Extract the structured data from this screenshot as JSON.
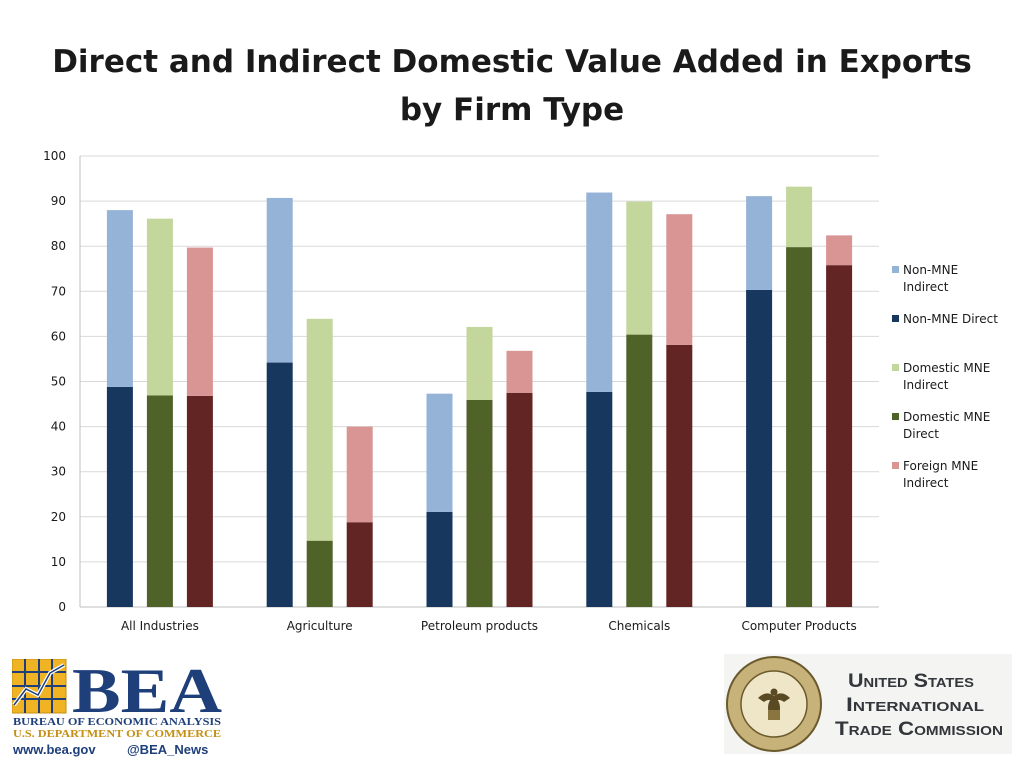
{
  "title_line1": "Direct and Indirect Domestic Value Added in Exports",
  "title_line2": "by Firm Type",
  "colors": {
    "non_mne_indirect": "#95b3d7",
    "non_mne_direct": "#17375e",
    "domestic_mne_indirect": "#c3d69b",
    "domestic_mne_direct": "#4f6228",
    "foreign_mne_indirect": "#d99594",
    "foreign_mne_direct": "#632523"
  },
  "legend": [
    {
      "key": "non_mne_indirect",
      "label": "Non-MNE Indirect"
    },
    {
      "key": "non_mne_direct",
      "label": "Non-MNE Direct"
    },
    {
      "key": "domestic_mne_indirect",
      "label": "Domestic MNE Indirect"
    },
    {
      "key": "domestic_mne_direct",
      "label": "Domestic MNE Direct"
    },
    {
      "key": "foreign_mne_indirect",
      "label": "Foreign MNE Indirect"
    }
  ],
  "chart_data": {
    "type": "bar",
    "stacked": true,
    "grouped": true,
    "title": "Direct and Indirect Domestic Value Added in Exports by Firm Type",
    "xlabel": "",
    "ylabel": "",
    "ylim": [
      0,
      100
    ],
    "yticks": [
      0,
      10,
      20,
      30,
      40,
      50,
      60,
      70,
      80,
      90,
      100
    ],
    "grid": true,
    "legend_position": "right",
    "categories": [
      "All Industries",
      "Agriculture",
      "Petroleum products",
      "Chemicals",
      "Computer Products"
    ],
    "groups": [
      {
        "name": "Non-MNE",
        "series": [
          {
            "name": "Non-MNE Direct",
            "color_key": "non_mne_direct",
            "values": [
              48.8,
              54.2,
              21.1,
              47.7,
              70.3
            ]
          },
          {
            "name": "Non-MNE Indirect",
            "color_key": "non_mne_indirect",
            "values": [
              39.2,
              36.5,
              26.2,
              44.2,
              20.8
            ]
          }
        ]
      },
      {
        "name": "Domestic MNE",
        "series": [
          {
            "name": "Domestic MNE Direct",
            "color_key": "domestic_mne_direct",
            "values": [
              46.9,
              14.7,
              45.9,
              60.4,
              79.8
            ]
          },
          {
            "name": "Domestic MNE Indirect",
            "color_key": "domestic_mne_indirect",
            "values": [
              39.2,
              49.2,
              16.2,
              29.5,
              13.4
            ]
          }
        ]
      },
      {
        "name": "Foreign MNE",
        "series": [
          {
            "name": "",
            "color_key": "foreign_mne_direct",
            "values": [
              46.8,
              18.8,
              47.5,
              58.1,
              75.8
            ]
          },
          {
            "name": "Foreign MNE Indirect",
            "color_key": "foreign_mne_indirect",
            "values": [
              32.9,
              21.2,
              9.3,
              29.0,
              6.6
            ]
          }
        ]
      }
    ]
  },
  "logos": {
    "bea": {
      "letters": "BEA",
      "line1": "BUREAU OF ECONOMIC ANALYSIS",
      "line2": "U.S. DEPARTMENT OF COMMERCE",
      "web": "www.bea.gov",
      "social": "@BEA_News"
    },
    "usitc": {
      "line1": "United States",
      "line2": "International",
      "line3": "Trade Commission",
      "seal_text": "UNITED STATES INTERNATIONAL TRADE COMMISSION"
    }
  }
}
